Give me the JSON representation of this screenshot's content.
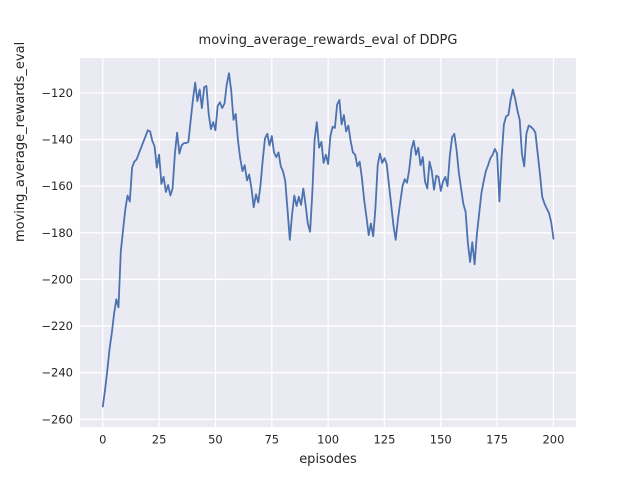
{
  "chart_data": {
    "type": "line",
    "title": "moving_average_rewards_eval of DDPG",
    "xlabel": "episodes",
    "ylabel": "moving_average_rewards_eval",
    "x_ticks": [
      0,
      25,
      50,
      75,
      100,
      125,
      150,
      175,
      200
    ],
    "y_ticks": [
      -120,
      -140,
      -160,
      -180,
      -200,
      -220,
      -240,
      -260
    ],
    "xlim": [
      -10.1,
      210
    ],
    "ylim": [
      -263.3,
      -105
    ],
    "grid": true,
    "legend": "none",
    "style": {
      "axes_bg": "#eaeaf2",
      "grid_color": "#ffffff",
      "line_color": "#4c72b0",
      "text_color": "#262626",
      "figure_bg": "#ffffff"
    },
    "series": [
      {
        "name": "moving_average_rewards_eval",
        "x_start": 0,
        "x_step": 1,
        "y": [
          -254.5,
          -247.5,
          -239,
          -230,
          -223,
          -215,
          -208.5,
          -212,
          -188,
          -179,
          -170,
          -164,
          -166.5,
          -152,
          -149.5,
          -148.5,
          -146,
          -143.5,
          -141,
          -138.5,
          -136,
          -136.5,
          -140.5,
          -143,
          -152,
          -146.5,
          -159,
          -156,
          -162.5,
          -159.5,
          -164,
          -161,
          -146,
          -137,
          -146,
          -142.5,
          -141.5,
          -141.5,
          -141,
          -132,
          -123,
          -115.5,
          -123.5,
          -118.5,
          -126.5,
          -117.5,
          -117,
          -129,
          -135.5,
          -132.5,
          -136,
          -125.5,
          -124,
          -126.5,
          -124.5,
          -116.5,
          -111.5,
          -119,
          -131.5,
          -129,
          -140.5,
          -148,
          -153.5,
          -151,
          -157.5,
          -155,
          -161,
          -169,
          -163.5,
          -167,
          -159.5,
          -148.5,
          -139.5,
          -137.5,
          -142.5,
          -138.5,
          -145.5,
          -147.5,
          -145.5,
          -151.5,
          -153.5,
          -158,
          -170,
          -183,
          -172,
          -164,
          -168.5,
          -164.5,
          -168,
          -161,
          -168,
          -176,
          -179.5,
          -163,
          -140,
          -132.5,
          -143.5,
          -141,
          -150,
          -146.5,
          -150.5,
          -138.5,
          -134.5,
          -135,
          -125,
          -123,
          -133.5,
          -129.5,
          -136.5,
          -134,
          -140.5,
          -145.5,
          -146.5,
          -151.5,
          -149.5,
          -156.5,
          -166,
          -173,
          -181,
          -176,
          -181.5,
          -169.5,
          -151,
          -146,
          -150,
          -148,
          -150.5,
          -159.5,
          -168,
          -177,
          -183,
          -174,
          -167,
          -160,
          -157,
          -158.5,
          -153,
          -144,
          -140.5,
          -146.5,
          -143.5,
          -151,
          -147.5,
          -158,
          -161,
          -149.5,
          -153.5,
          -161.5,
          -155.5,
          -156,
          -162,
          -158,
          -156,
          -160,
          -147,
          -139,
          -137.5,
          -144.5,
          -154,
          -161,
          -167.5,
          -171,
          -184,
          -192.5,
          -184,
          -193.5,
          -181,
          -172,
          -163,
          -158,
          -153.5,
          -151,
          -148,
          -146.5,
          -144,
          -146,
          -166.5,
          -147.5,
          -133.5,
          -130,
          -129.5,
          -123,
          -118.5,
          -122.5,
          -127.5,
          -131.5,
          -146,
          -151.5,
          -137.5,
          -134,
          -134.5,
          -135.5,
          -137,
          -146,
          -154.5,
          -164.5,
          -167.5,
          -169.5,
          -171.5,
          -175.5,
          -182.5
        ]
      }
    ]
  }
}
